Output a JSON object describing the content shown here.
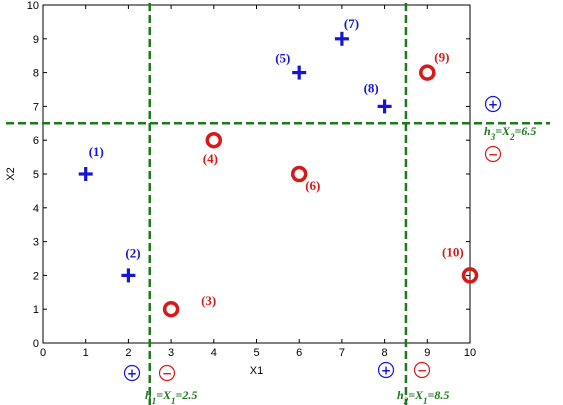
{
  "chart_data": {
    "type": "scatter",
    "title": "",
    "xlabel": "X1",
    "ylabel": "X2",
    "xlim": [
      0,
      10
    ],
    "ylim": [
      0,
      10
    ],
    "xticks": [
      0,
      1,
      2,
      3,
      4,
      5,
      6,
      7,
      8,
      9,
      10
    ],
    "yticks": [
      0,
      1,
      2,
      3,
      4,
      5,
      6,
      7,
      8,
      9,
      10
    ],
    "grid": false,
    "colors": {
      "positive": "#1515d6",
      "negative": "#d61a1a",
      "split": "#1c7a1c"
    },
    "series": [
      {
        "marker": "plus",
        "color": "#1515d6",
        "points": [
          {
            "x": 1,
            "y": 5,
            "label": "(1)"
          },
          {
            "x": 2,
            "y": 2,
            "label": "(2)"
          },
          {
            "x": 6,
            "y": 8,
            "label": "(5)"
          },
          {
            "x": 7,
            "y": 9,
            "label": "(7)"
          },
          {
            "x": 8,
            "y": 7,
            "label": "(8)"
          }
        ]
      },
      {
        "marker": "circle",
        "color": "#d61a1a",
        "points": [
          {
            "x": 3,
            "y": 1,
            "label": "(3)"
          },
          {
            "x": 4,
            "y": 6,
            "label": "(4)"
          },
          {
            "x": 6,
            "y": 5,
            "label": "(6)"
          },
          {
            "x": 9,
            "y": 8,
            "label": "(9)"
          },
          {
            "x": 10,
            "y": 2,
            "label": "(10)"
          }
        ]
      }
    ],
    "split_lines": [
      {
        "orientation": "vertical",
        "value": 2.5,
        "label_parts": [
          "h",
          "1",
          "=X",
          "1",
          "=2.5"
        ]
      },
      {
        "orientation": "vertical",
        "value": 8.5,
        "label_parts": [
          "h",
          "2",
          "=X",
          "1",
          "=8.5"
        ]
      },
      {
        "orientation": "horizontal",
        "value": 6.5,
        "label_parts": [
          "h",
          "3",
          "=X",
          "2",
          "=6.5"
        ]
      }
    ],
    "sign_markers": [
      {
        "line": 0,
        "positive": "+",
        "negative": "−"
      },
      {
        "line": 1,
        "positive": "+",
        "negative": "−"
      },
      {
        "line": 2,
        "positive": "+",
        "negative": "−"
      }
    ]
  }
}
